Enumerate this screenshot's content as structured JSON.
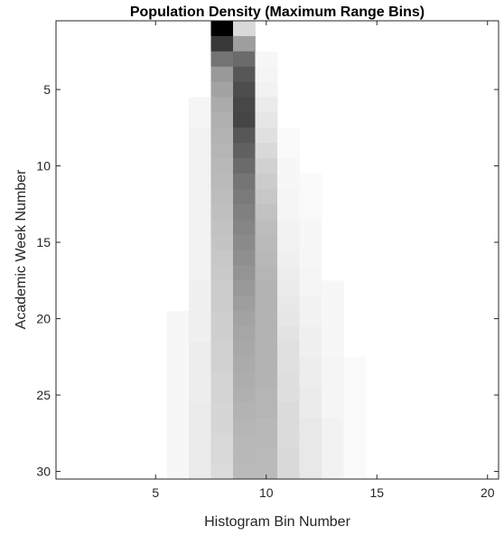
{
  "chart_data": {
    "type": "heatmap",
    "title": "Population Density (Maximum Range Bins)",
    "xlabel": "Histogram Bin Number",
    "ylabel": "Academic Week Number",
    "xlim": [
      0.5,
      20.5
    ],
    "ylim": [
      0.5,
      30.5
    ],
    "y_reversed": true,
    "colormap": "gray-reversed",
    "xticks": [
      5,
      10,
      15,
      20
    ],
    "yticks": [
      5,
      10,
      15,
      20,
      25,
      30
    ],
    "grid": false,
    "legend": "none",
    "value_scale": "normalized 0-1 (0 = white, 1 = black)",
    "columns": [
      6,
      7,
      8,
      9,
      10,
      11,
      12,
      13,
      14
    ],
    "rows_from_week": 1,
    "values": [
      [
        0,
        0,
        1.0,
        0.15,
        0,
        0,
        0,
        0,
        0
      ],
      [
        0,
        0,
        0.78,
        0.38,
        0,
        0,
        0,
        0,
        0
      ],
      [
        0,
        0,
        0.55,
        0.58,
        0.03,
        0,
        0,
        0,
        0
      ],
      [
        0,
        0,
        0.4,
        0.66,
        0.04,
        0,
        0,
        0,
        0
      ],
      [
        0,
        0,
        0.36,
        0.7,
        0.05,
        0,
        0,
        0,
        0
      ],
      [
        0,
        0.04,
        0.33,
        0.72,
        0.08,
        0,
        0,
        0,
        0
      ],
      [
        0,
        0.04,
        0.31,
        0.73,
        0.1,
        0,
        0,
        0,
        0
      ],
      [
        0,
        0.05,
        0.3,
        0.66,
        0.12,
        0.02,
        0,
        0,
        0
      ],
      [
        0,
        0.05,
        0.29,
        0.62,
        0.15,
        0.02,
        0,
        0,
        0
      ],
      [
        0,
        0.05,
        0.28,
        0.58,
        0.18,
        0.03,
        0,
        0,
        0
      ],
      [
        0,
        0.05,
        0.27,
        0.54,
        0.2,
        0.03,
        0.02,
        0,
        0
      ],
      [
        0,
        0.05,
        0.26,
        0.52,
        0.22,
        0.04,
        0.02,
        0,
        0
      ],
      [
        0,
        0.05,
        0.25,
        0.5,
        0.24,
        0.04,
        0.02,
        0,
        0
      ],
      [
        0,
        0.05,
        0.24,
        0.48,
        0.26,
        0.05,
        0.03,
        0,
        0
      ],
      [
        0,
        0.05,
        0.23,
        0.46,
        0.27,
        0.05,
        0.03,
        0,
        0
      ],
      [
        0,
        0.05,
        0.22,
        0.44,
        0.28,
        0.06,
        0.03,
        0,
        0
      ],
      [
        0,
        0.05,
        0.21,
        0.42,
        0.29,
        0.07,
        0.04,
        0,
        0
      ],
      [
        0,
        0.06,
        0.2,
        0.4,
        0.3,
        0.08,
        0.04,
        0.03,
        0
      ],
      [
        0,
        0.06,
        0.2,
        0.38,
        0.3,
        0.09,
        0.05,
        0.03,
        0
      ],
      [
        0.03,
        0.06,
        0.19,
        0.36,
        0.3,
        0.1,
        0.05,
        0.03,
        0
      ],
      [
        0.03,
        0.06,
        0.19,
        0.35,
        0.3,
        0.11,
        0.06,
        0.03,
        0
      ],
      [
        0.03,
        0.07,
        0.18,
        0.34,
        0.3,
        0.12,
        0.06,
        0.03,
        0
      ],
      [
        0.03,
        0.07,
        0.18,
        0.33,
        0.3,
        0.12,
        0.07,
        0.04,
        0.02
      ],
      [
        0.03,
        0.07,
        0.17,
        0.32,
        0.3,
        0.13,
        0.07,
        0.04,
        0.02
      ],
      [
        0.03,
        0.07,
        0.17,
        0.31,
        0.29,
        0.13,
        0.08,
        0.04,
        0.02
      ],
      [
        0.03,
        0.08,
        0.16,
        0.3,
        0.29,
        0.14,
        0.08,
        0.04,
        0.02
      ],
      [
        0.03,
        0.08,
        0.16,
        0.29,
        0.28,
        0.14,
        0.09,
        0.05,
        0.02
      ],
      [
        0.03,
        0.08,
        0.15,
        0.28,
        0.28,
        0.14,
        0.09,
        0.05,
        0.02
      ],
      [
        0.03,
        0.08,
        0.15,
        0.28,
        0.27,
        0.15,
        0.09,
        0.05,
        0.02
      ],
      [
        0.03,
        0.08,
        0.14,
        0.27,
        0.27,
        0.15,
        0.09,
        0.05,
        0.02
      ]
    ]
  }
}
